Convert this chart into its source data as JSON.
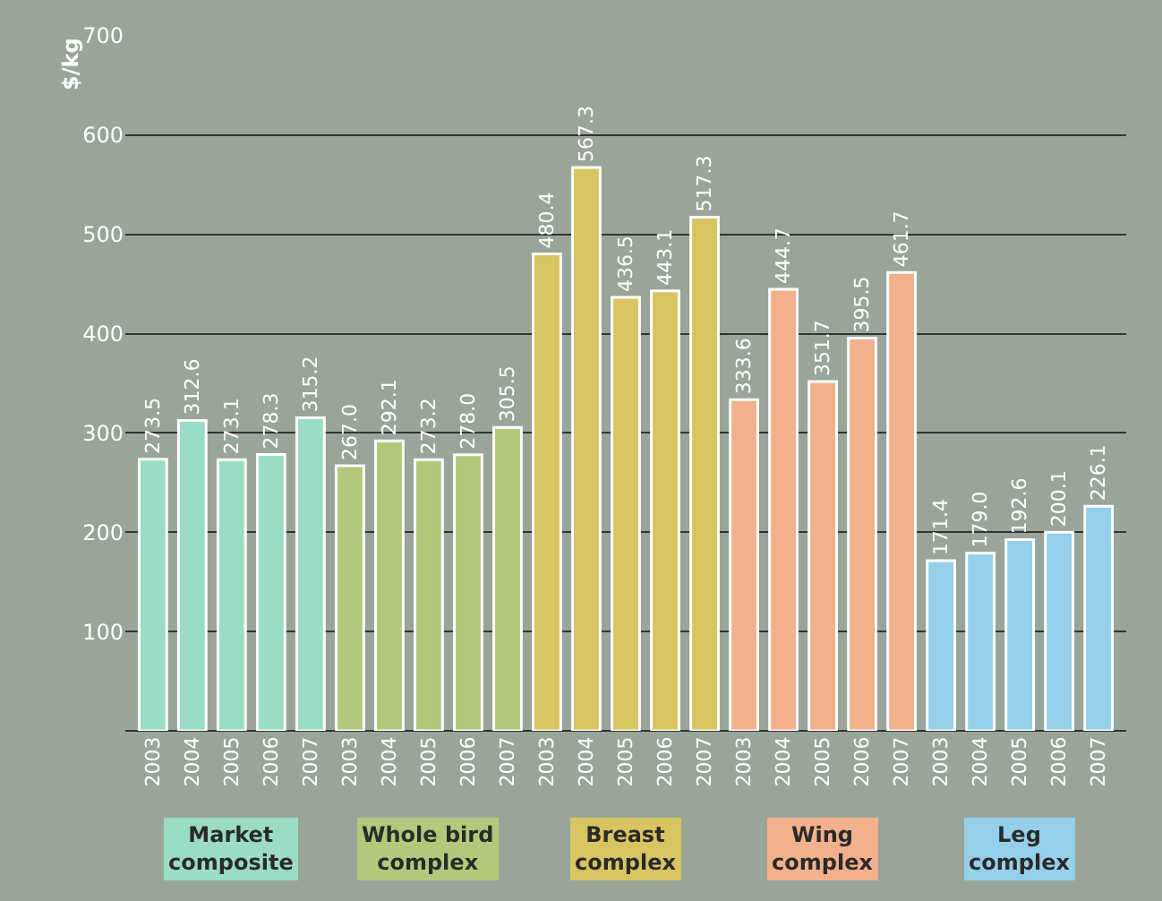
{
  "chart_data": {
    "type": "bar",
    "ylabel": "$/kg",
    "categories": [
      "2003",
      "2004",
      "2005",
      "2006",
      "2007",
      "2003",
      "2004",
      "2005",
      "2006",
      "2007",
      "2003",
      "2004",
      "2005",
      "2006",
      "2007",
      "2003",
      "2004",
      "2005",
      "2006",
      "2007",
      "2003",
      "2004",
      "2005",
      "2006",
      "2007"
    ],
    "series": [
      {
        "name": "Market composite",
        "color": "#9adcc4",
        "values": [
          273.5,
          312.6,
          273.1,
          278.3,
          315.2,
          null,
          null,
          null,
          null,
          null,
          null,
          null,
          null,
          null,
          null,
          null,
          null,
          null,
          null,
          null,
          null,
          null,
          null,
          null,
          null
        ],
        "value_labels": [
          "273.5",
          "312.6",
          "273.1",
          "278.3",
          "315.2",
          null,
          null,
          null,
          null,
          null,
          null,
          null,
          null,
          null,
          null,
          null,
          null,
          null,
          null,
          null,
          null,
          null,
          null,
          null,
          null
        ]
      },
      {
        "name": "Whole bird complex",
        "color": "#b4c87c",
        "values": [
          null,
          null,
          null,
          null,
          null,
          267.0,
          292.1,
          273.2,
          278.0,
          305.5,
          null,
          null,
          null,
          null,
          null,
          null,
          null,
          null,
          null,
          null,
          null,
          null,
          null,
          null,
          null
        ],
        "value_labels": [
          null,
          null,
          null,
          null,
          null,
          "267.0",
          "292.1",
          "273.2",
          "278.0",
          "305.5",
          null,
          null,
          null,
          null,
          null,
          null,
          null,
          null,
          null,
          null,
          null,
          null,
          null,
          null,
          null
        ]
      },
      {
        "name": "Breast complex",
        "color": "#d8c460",
        "values": [
          null,
          null,
          null,
          null,
          null,
          null,
          null,
          null,
          null,
          null,
          480.4,
          567.3,
          436.5,
          443.1,
          517.3,
          null,
          null,
          null,
          null,
          null,
          null,
          null,
          null,
          null,
          null
        ],
        "value_labels": [
          null,
          null,
          null,
          null,
          null,
          null,
          null,
          null,
          null,
          null,
          "480.4",
          "567.3",
          "436.5",
          "443.1",
          "517.3",
          null,
          null,
          null,
          null,
          null,
          null,
          null,
          null,
          null,
          null
        ]
      },
      {
        "name": "Wing complex",
        "color": "#f2b08c",
        "values": [
          null,
          null,
          null,
          null,
          null,
          null,
          null,
          null,
          null,
          null,
          null,
          null,
          null,
          null,
          null,
          333.6,
          444.7,
          351.7,
          395.5,
          461.7,
          null,
          null,
          null,
          null,
          null
        ],
        "value_labels": [
          null,
          null,
          null,
          null,
          null,
          null,
          null,
          null,
          null,
          null,
          null,
          null,
          null,
          null,
          null,
          "333.6",
          "444.7",
          "351.7",
          "395.5",
          "461.7",
          null,
          null,
          null,
          null,
          null
        ]
      },
      {
        "name": "Leg complex",
        "color": "#94d0ea",
        "values": [
          null,
          null,
          null,
          null,
          null,
          null,
          null,
          null,
          null,
          null,
          null,
          null,
          null,
          null,
          null,
          null,
          null,
          null,
          null,
          null,
          171.4,
          179.0,
          192.6,
          200.1,
          226.1
        ],
        "value_labels": [
          null,
          null,
          null,
          null,
          null,
          null,
          null,
          null,
          null,
          null,
          null,
          null,
          null,
          null,
          null,
          null,
          null,
          null,
          null,
          null,
          "171.4",
          "179.0",
          "192.6",
          "200.1",
          "226.1"
        ]
      }
    ],
    "ylim": [
      0,
      700
    ],
    "yticks": [
      {
        "value": 0,
        "label": null
      },
      100,
      200,
      300,
      400,
      500,
      600,
      700
    ],
    "grid": "y",
    "legend": false
  }
}
